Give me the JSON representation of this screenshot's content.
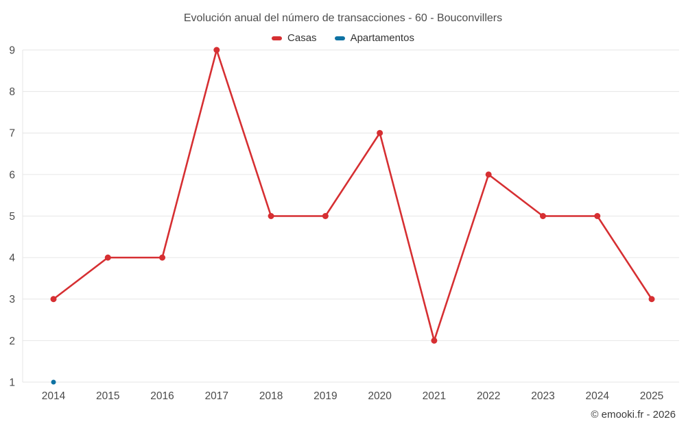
{
  "chart_data": {
    "type": "line",
    "title": "Evolución anual del número de transacciones - 60 - Bouconvillers",
    "categories": [
      "2014",
      "2015",
      "2016",
      "2017",
      "2018",
      "2019",
      "2020",
      "2021",
      "2022",
      "2023",
      "2024",
      "2025"
    ],
    "series": [
      {
        "name": "Casas",
        "color": "#d62f32",
        "values": [
          3,
          4,
          4,
          9,
          5,
          5,
          7,
          2,
          6,
          5,
          5,
          3
        ]
      },
      {
        "name": "Apartamentos",
        "color": "#0e72a3",
        "values": [
          1,
          null,
          null,
          null,
          null,
          null,
          null,
          null,
          null,
          null,
          null,
          null
        ]
      }
    ],
    "xlabel": "",
    "ylabel": "",
    "ylim": [
      1,
      9
    ],
    "y_ticks": [
      1,
      2,
      3,
      4,
      5,
      6,
      7,
      8,
      9
    ],
    "grid": true,
    "legend_position": "top"
  },
  "footer": {
    "copyright": "© emooki.fr - 2026"
  },
  "colors": {
    "gridline": "#e6e6e6",
    "axis_label": "#4a4a4a",
    "title_text": "#4d4d4d",
    "legend_text": "#333333"
  }
}
